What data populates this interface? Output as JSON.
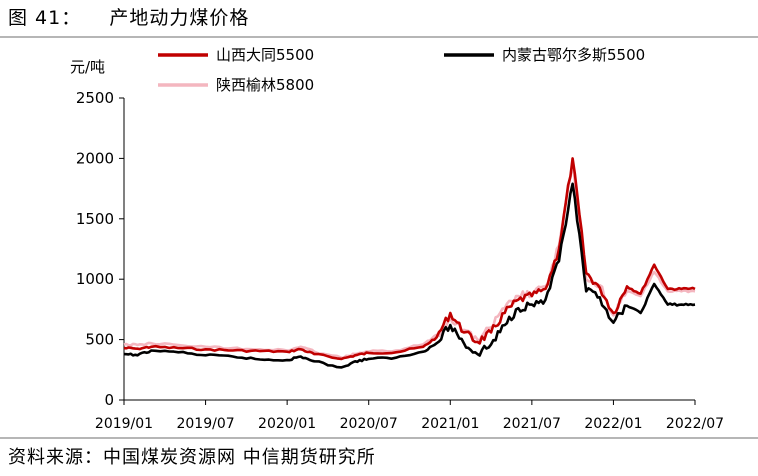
{
  "figure": {
    "title": "图 41：    产地动力煤价格",
    "source": "资料来源：中国煤炭资源网 中信期货研究所"
  },
  "chart_data": {
    "type": "line",
    "unit_label": "元/吨",
    "yticks": [
      0,
      500,
      1000,
      1500,
      2000,
      2500
    ],
    "ylim": [
      0,
      2500
    ],
    "xticks": [
      "2019/01",
      "2019/07",
      "2020/01",
      "2020/07",
      "2021/01",
      "2021/07",
      "2022/01",
      "2022/07"
    ],
    "xlim": [
      "2019/01",
      "2022/07"
    ],
    "grid": false,
    "legend_position": "top",
    "series": [
      {
        "name": "山西大同5500",
        "color": "#c00000",
        "points": [
          [
            "2019/01",
            430
          ],
          [
            "2019/02",
            425
          ],
          [
            "2019/03",
            440
          ],
          [
            "2019/05",
            430
          ],
          [
            "2019/07",
            420
          ],
          [
            "2019/09",
            410
          ],
          [
            "2019/11",
            405
          ],
          [
            "2020/01",
            400
          ],
          [
            "2020/02",
            420
          ],
          [
            "2020/03",
            380
          ],
          [
            "2020/05",
            340
          ],
          [
            "2020/06",
            370
          ],
          [
            "2020/07",
            390
          ],
          [
            "2020/09",
            395
          ],
          [
            "2020/11",
            440
          ],
          [
            "2020/12",
            520
          ],
          [
            "2021/01",
            720
          ],
          [
            "2021/02",
            560
          ],
          [
            "2021/03",
            480
          ],
          [
            "2021/04",
            560
          ],
          [
            "2021/05",
            720
          ],
          [
            "2021/06",
            830
          ],
          [
            "2021/07",
            860
          ],
          [
            "2021/08",
            920
          ],
          [
            "2021/09",
            1250
          ],
          [
            "2021/10",
            2000
          ],
          [
            "2021/11",
            1050
          ],
          [
            "2021/12",
            930
          ],
          [
            "2022/01",
            720
          ],
          [
            "2022/02",
            940
          ],
          [
            "2022/03",
            880
          ],
          [
            "2022/04",
            1120
          ],
          [
            "2022/05",
            920
          ],
          [
            "2022/06",
            920
          ],
          [
            "2022/07",
            920
          ]
        ]
      },
      {
        "name": "内蒙古鄂尔多斯5500",
        "color": "#000000",
        "points": [
          [
            "2019/01",
            380
          ],
          [
            "2019/02",
            370
          ],
          [
            "2019/03",
            410
          ],
          [
            "2019/05",
            395
          ],
          [
            "2019/07",
            370
          ],
          [
            "2019/09",
            360
          ],
          [
            "2019/11",
            335
          ],
          [
            "2020/01",
            330
          ],
          [
            "2020/02",
            360
          ],
          [
            "2020/03",
            320
          ],
          [
            "2020/05",
            270
          ],
          [
            "2020/06",
            320
          ],
          [
            "2020/07",
            340
          ],
          [
            "2020/09",
            350
          ],
          [
            "2020/11",
            400
          ],
          [
            "2020/12",
            470
          ],
          [
            "2021/01",
            620
          ],
          [
            "2021/02",
            470
          ],
          [
            "2021/03",
            380
          ],
          [
            "2021/04",
            460
          ],
          [
            "2021/05",
            620
          ],
          [
            "2021/06",
            760
          ],
          [
            "2021/07",
            790
          ],
          [
            "2021/08",
            830
          ],
          [
            "2021/09",
            1150
          ],
          [
            "2021/10",
            1790
          ],
          [
            "2021/11",
            900
          ],
          [
            "2021/12",
            850
          ],
          [
            "2022/01",
            640
          ],
          [
            "2022/02",
            780
          ],
          [
            "2022/03",
            720
          ],
          [
            "2022/04",
            960
          ],
          [
            "2022/05",
            790
          ],
          [
            "2022/06",
            790
          ],
          [
            "2022/07",
            790
          ]
        ]
      },
      {
        "name": "陕西榆林5800",
        "color": "#f4b6bf",
        "points": [
          [
            "2019/01",
            460
          ],
          [
            "2019/02",
            455
          ],
          [
            "2019/03",
            470
          ],
          [
            "2019/05",
            455
          ],
          [
            "2019/07",
            440
          ],
          [
            "2019/09",
            430
          ],
          [
            "2019/11",
            420
          ],
          [
            "2020/01",
            410
          ],
          [
            "2020/02",
            440
          ],
          [
            "2020/03",
            400
          ],
          [
            "2020/05",
            350
          ],
          [
            "2020/06",
            380
          ],
          [
            "2020/07",
            400
          ],
          [
            "2020/09",
            410
          ],
          [
            "2020/11",
            460
          ],
          [
            "2020/12",
            540
          ],
          [
            "2021/01",
            680
          ],
          [
            "2021/02",
            580
          ],
          [
            "2021/03",
            500
          ],
          [
            "2021/04",
            600
          ],
          [
            "2021/05",
            760
          ],
          [
            "2021/06",
            860
          ],
          [
            "2021/07",
            880
          ],
          [
            "2021/08",
            940
          ],
          [
            "2021/09",
            1280
          ],
          [
            "2021/10",
            1950
          ],
          [
            "2021/11",
            1000
          ],
          [
            "2021/12",
            950
          ],
          [
            "2022/01",
            700
          ],
          [
            "2022/02",
            900
          ],
          [
            "2022/03",
            860
          ],
          [
            "2022/04",
            1060
          ],
          [
            "2022/05",
            900
          ],
          [
            "2022/06",
            900
          ],
          [
            "2022/07",
            900
          ]
        ]
      }
    ]
  }
}
